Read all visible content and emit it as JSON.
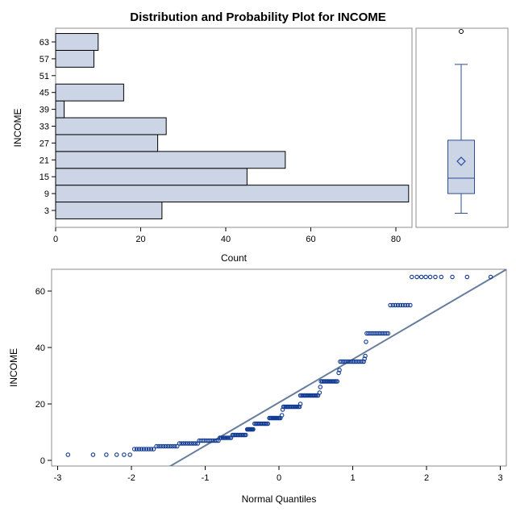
{
  "title": "Distribution and Probability Plot for INCOME",
  "colors": {
    "bar_fill": "#cbd5e6",
    "bar_stroke": "#000000",
    "frame": "#8c8c8c",
    "box_stroke": "#2a4c99",
    "box_fill": "#cbd5e6",
    "point": "#113a92",
    "ref_line": "#667d9e"
  },
  "chart_data": [
    {
      "type": "bar",
      "orientation": "horizontal",
      "categories": [
        "3",
        "9",
        "15",
        "21",
        "27",
        "33",
        "39",
        "45",
        "51",
        "57",
        "63"
      ],
      "values": [
        25,
        83,
        45,
        54,
        24,
        26,
        2,
        16,
        0,
        9,
        10
      ],
      "xlabel": "Count",
      "ylabel": "INCOME",
      "xlim": [
        0,
        84
      ],
      "xticks": [
        "0",
        "20",
        "40",
        "60",
        "80"
      ],
      "grid": false
    },
    {
      "type": "box",
      "variable": "INCOME",
      "whisker_low": 2,
      "q1": 9,
      "median": 14.5,
      "mean": 20.5,
      "q3": 28,
      "whisker_high": 55,
      "outliers": [
        65
      ],
      "ylim": [
        0,
        66
      ]
    },
    {
      "type": "scatter",
      "subtype": "normal probability plot",
      "xlabel": "Normal Quantiles",
      "ylabel": "INCOME",
      "xlim": [
        -3.05,
        3.05
      ],
      "ylim": [
        -1.5,
        66
      ],
      "xticks": [
        "-3",
        "-2",
        "-1",
        "0",
        "1",
        "2",
        "3"
      ],
      "yticks": [
        "0",
        "20",
        "40",
        "60"
      ],
      "reference_line": {
        "intercept": 20.5,
        "slope": 15.3
      },
      "point_groups": [
        {
          "x": [
            -2.86,
            -2.52,
            -2.34,
            -2.2,
            -2.1,
            -2.02
          ],
          "y": 2
        },
        {
          "x_from": -1.96,
          "x_to": -1.7,
          "count": 9,
          "y": 4
        },
        {
          "x_from": -1.66,
          "x_to": -1.38,
          "count": 10,
          "y": 5
        },
        {
          "x_from": -1.35,
          "x_to": -1.1,
          "count": 10,
          "y": 6
        },
        {
          "x_from": -1.08,
          "x_to": -0.82,
          "count": 12,
          "y": 7
        },
        {
          "x_from": -0.8,
          "x_to": -0.65,
          "count": 9,
          "y": 8
        },
        {
          "x_from": -0.63,
          "x_to": -0.45,
          "count": 12,
          "y": 9
        },
        {
          "x_from": -0.43,
          "x_to": -0.35,
          "count": 8,
          "y": 11
        },
        {
          "x_from": -0.33,
          "x_to": -0.15,
          "count": 12,
          "y": 13
        },
        {
          "x_from": -0.13,
          "x_to": 0.02,
          "count": 12,
          "y": 15
        },
        {
          "x": [
            0.04
          ],
          "y": 16
        },
        {
          "x": [
            0.05
          ],
          "y": 18
        },
        {
          "x_from": 0.06,
          "x_to": 0.28,
          "count": 14,
          "y": 19
        },
        {
          "x": [
            0.29
          ],
          "y": 20
        },
        {
          "x_from": 0.29,
          "x_to": 0.53,
          "count": 15,
          "y": 23
        },
        {
          "x": [
            0.55
          ],
          "y": 24
        },
        {
          "x": [
            0.56
          ],
          "y": 26
        },
        {
          "x_from": 0.57,
          "x_to": 0.79,
          "count": 14,
          "y": 28
        },
        {
          "x": [
            0.81
          ],
          "y": 31
        },
        {
          "x": [
            0.82
          ],
          "y": 32
        },
        {
          "x_from": 0.83,
          "x_to": 1.15,
          "count": 16,
          "y": 35
        },
        {
          "x": [
            1.16
          ],
          "y": 36
        },
        {
          "x": [
            1.17
          ],
          "y": 37
        },
        {
          "x": [
            1.18
          ],
          "y": 42
        },
        {
          "x_from": 1.19,
          "x_to": 1.48,
          "count": 14,
          "y": 45
        },
        {
          "x_from": 1.51,
          "x_to": 1.78,
          "count": 9,
          "y": 55
        },
        {
          "x": [
            1.8,
            1.87,
            1.93,
            1.99,
            2.05,
            2.12,
            2.2,
            2.35,
            2.55,
            2.87
          ],
          "y": 65
        }
      ]
    }
  ]
}
